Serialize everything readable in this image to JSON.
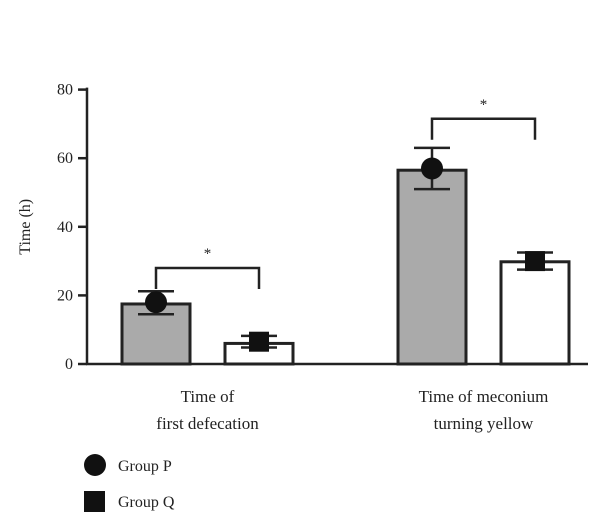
{
  "chart_data": {
    "type": "bar",
    "ylabel": "Time (h)",
    "ylim": [
      0,
      80
    ],
    "yticks": [
      0,
      20,
      40,
      60,
      80
    ],
    "categories": [
      [
        "Time of",
        "first defecation"
      ],
      [
        "Time of meconium",
        "turning yellow"
      ]
    ],
    "series": [
      {
        "name": "Group P",
        "marker": "circle",
        "fill": "#aaaaaa",
        "values": [
          17.5,
          56.5
        ],
        "mean_marker": [
          18,
          57
        ],
        "error_low": [
          14.5,
          51
        ],
        "error_high": [
          21.2,
          63
        ]
      },
      {
        "name": "Group Q",
        "marker": "square",
        "fill": "#ffffff",
        "values": [
          6,
          29.8
        ],
        "mean_marker": [
          6.5,
          30
        ],
        "error_low": [
          4.8,
          27.5
        ],
        "error_high": [
          8.2,
          32.5
        ]
      }
    ],
    "significance": [
      {
        "category_index": 0,
        "label": "*"
      },
      {
        "category_index": 1,
        "label": "*"
      }
    ],
    "grid": false,
    "legend_position": "bottom-left"
  }
}
